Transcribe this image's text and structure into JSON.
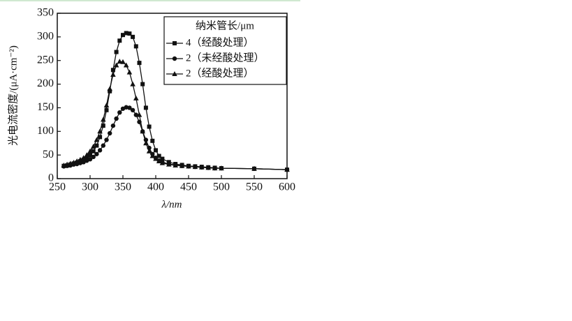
{
  "chart_data": {
    "type": "line",
    "x_label": "λ/nm",
    "y_label": "光电流密度/(μA·cm⁻²)",
    "legend_title": "纳米管长/μm",
    "x": [
      260,
      265,
      270,
      275,
      280,
      285,
      290,
      295,
      300,
      305,
      310,
      315,
      320,
      325,
      330,
      335,
      340,
      345,
      350,
      355,
      360,
      365,
      370,
      375,
      380,
      385,
      390,
      395,
      400,
      405,
      410,
      420,
      430,
      440,
      450,
      460,
      470,
      480,
      490,
      500,
      550,
      600
    ],
    "series": [
      {
        "name": "4（经酸处理）",
        "color": "#111111",
        "marker": "square",
        "values": [
          27,
          28,
          30,
          32,
          34,
          37,
          40,
          44,
          50,
          58,
          70,
          88,
          112,
          145,
          185,
          230,
          268,
          292,
          304,
          308,
          307,
          300,
          280,
          245,
          200,
          150,
          110,
          80,
          60,
          48,
          42,
          35,
          31,
          29,
          27,
          26,
          25,
          24,
          23,
          22,
          21,
          19
        ]
      },
      {
        "name": "2（未经酸处理）",
        "color": "#111111",
        "marker": "circle",
        "values": [
          26,
          27,
          28,
          30,
          31,
          33,
          35,
          38,
          41,
          46,
          52,
          60,
          70,
          82,
          96,
          112,
          127,
          140,
          148,
          151,
          150,
          145,
          135,
          120,
          100,
          82,
          65,
          52,
          44,
          38,
          35,
          31,
          29,
          27,
          26,
          25,
          24,
          23,
          22,
          22,
          21,
          19
        ]
      },
      {
        "name": "2（经酸处理）",
        "color": "#111111",
        "marker": "triangle",
        "values": [
          28,
          30,
          32,
          34,
          37,
          40,
          44,
          50,
          58,
          68,
          82,
          100,
          125,
          155,
          190,
          220,
          240,
          248,
          247,
          240,
          225,
          200,
          170,
          135,
          100,
          75,
          58,
          48,
          42,
          37,
          33,
          30,
          28,
          27,
          26,
          25,
          24,
          23,
          22,
          22,
          21,
          19
        ]
      }
    ],
    "xlim": [
      250,
      600
    ],
    "xticks": [
      250,
      300,
      350,
      400,
      450,
      500,
      550,
      600
    ],
    "ylim": [
      0,
      350
    ],
    "yticks": [
      0,
      50,
      100,
      150,
      200,
      250,
      300,
      350
    ]
  }
}
